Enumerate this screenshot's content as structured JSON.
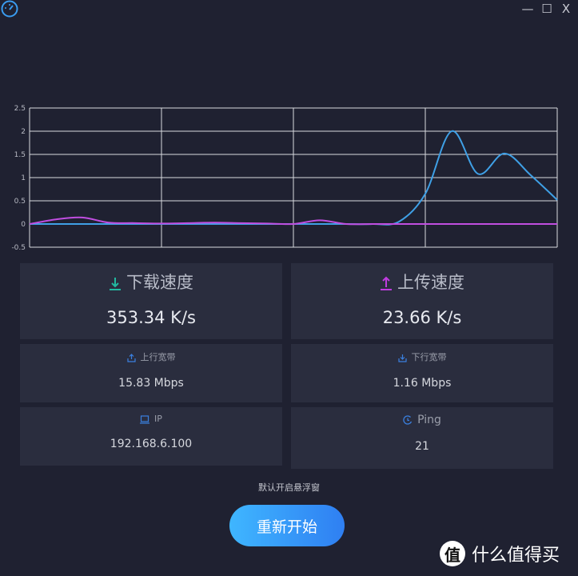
{
  "window": {
    "minimize": "—",
    "maximize": "☐",
    "close": "X"
  },
  "chart_data": {
    "type": "line",
    "title": "",
    "xlabel": "",
    "ylabel": "",
    "ylim": [
      -0.5,
      2.5
    ],
    "yticks": [
      "2.5",
      "2",
      "1.5",
      "1",
      "0.5",
      "0",
      "-0.5"
    ],
    "grid": true,
    "x": [
      0,
      1,
      2,
      3,
      4,
      5,
      6,
      7,
      8,
      9,
      10,
      11,
      12,
      13,
      14,
      15,
      16,
      17,
      18,
      19,
      20
    ],
    "series": [
      {
        "color": "#3fa0e6",
        "values": [
          0,
          0,
          0,
          0,
          0,
          0,
          0,
          0,
          0,
          0,
          0,
          0,
          0,
          0,
          0.05,
          0.65,
          2.0,
          1.08,
          1.52,
          1.05,
          0.52
        ]
      },
      {
        "color": "#c04ee0",
        "values": [
          0,
          0.1,
          0.14,
          0.03,
          0.02,
          0.01,
          0.02,
          0.03,
          0.02,
          0.01,
          0,
          0.08,
          0,
          0,
          0,
          0,
          0,
          0,
          0,
          0,
          0
        ]
      }
    ]
  },
  "download": {
    "title": "下载速度",
    "value": "353.34 K/s",
    "color": "#22b8a0"
  },
  "upload": {
    "title": "上传速度",
    "value": "23.66 K/s",
    "color": "#c03ce0"
  },
  "up_bandwidth": {
    "title": "上行宽带",
    "value": "15.83 Mbps"
  },
  "down_bandwidth": {
    "title": "下行宽带",
    "value": "1.16 Mbps"
  },
  "ip": {
    "title": "IP",
    "value": "192.168.6.100"
  },
  "ping": {
    "title": "Ping",
    "value": "21"
  },
  "hint": "默认开启悬浮窗",
  "restart_label": "重新开始",
  "watermark": {
    "logo": "值",
    "text": "什么值得买"
  }
}
